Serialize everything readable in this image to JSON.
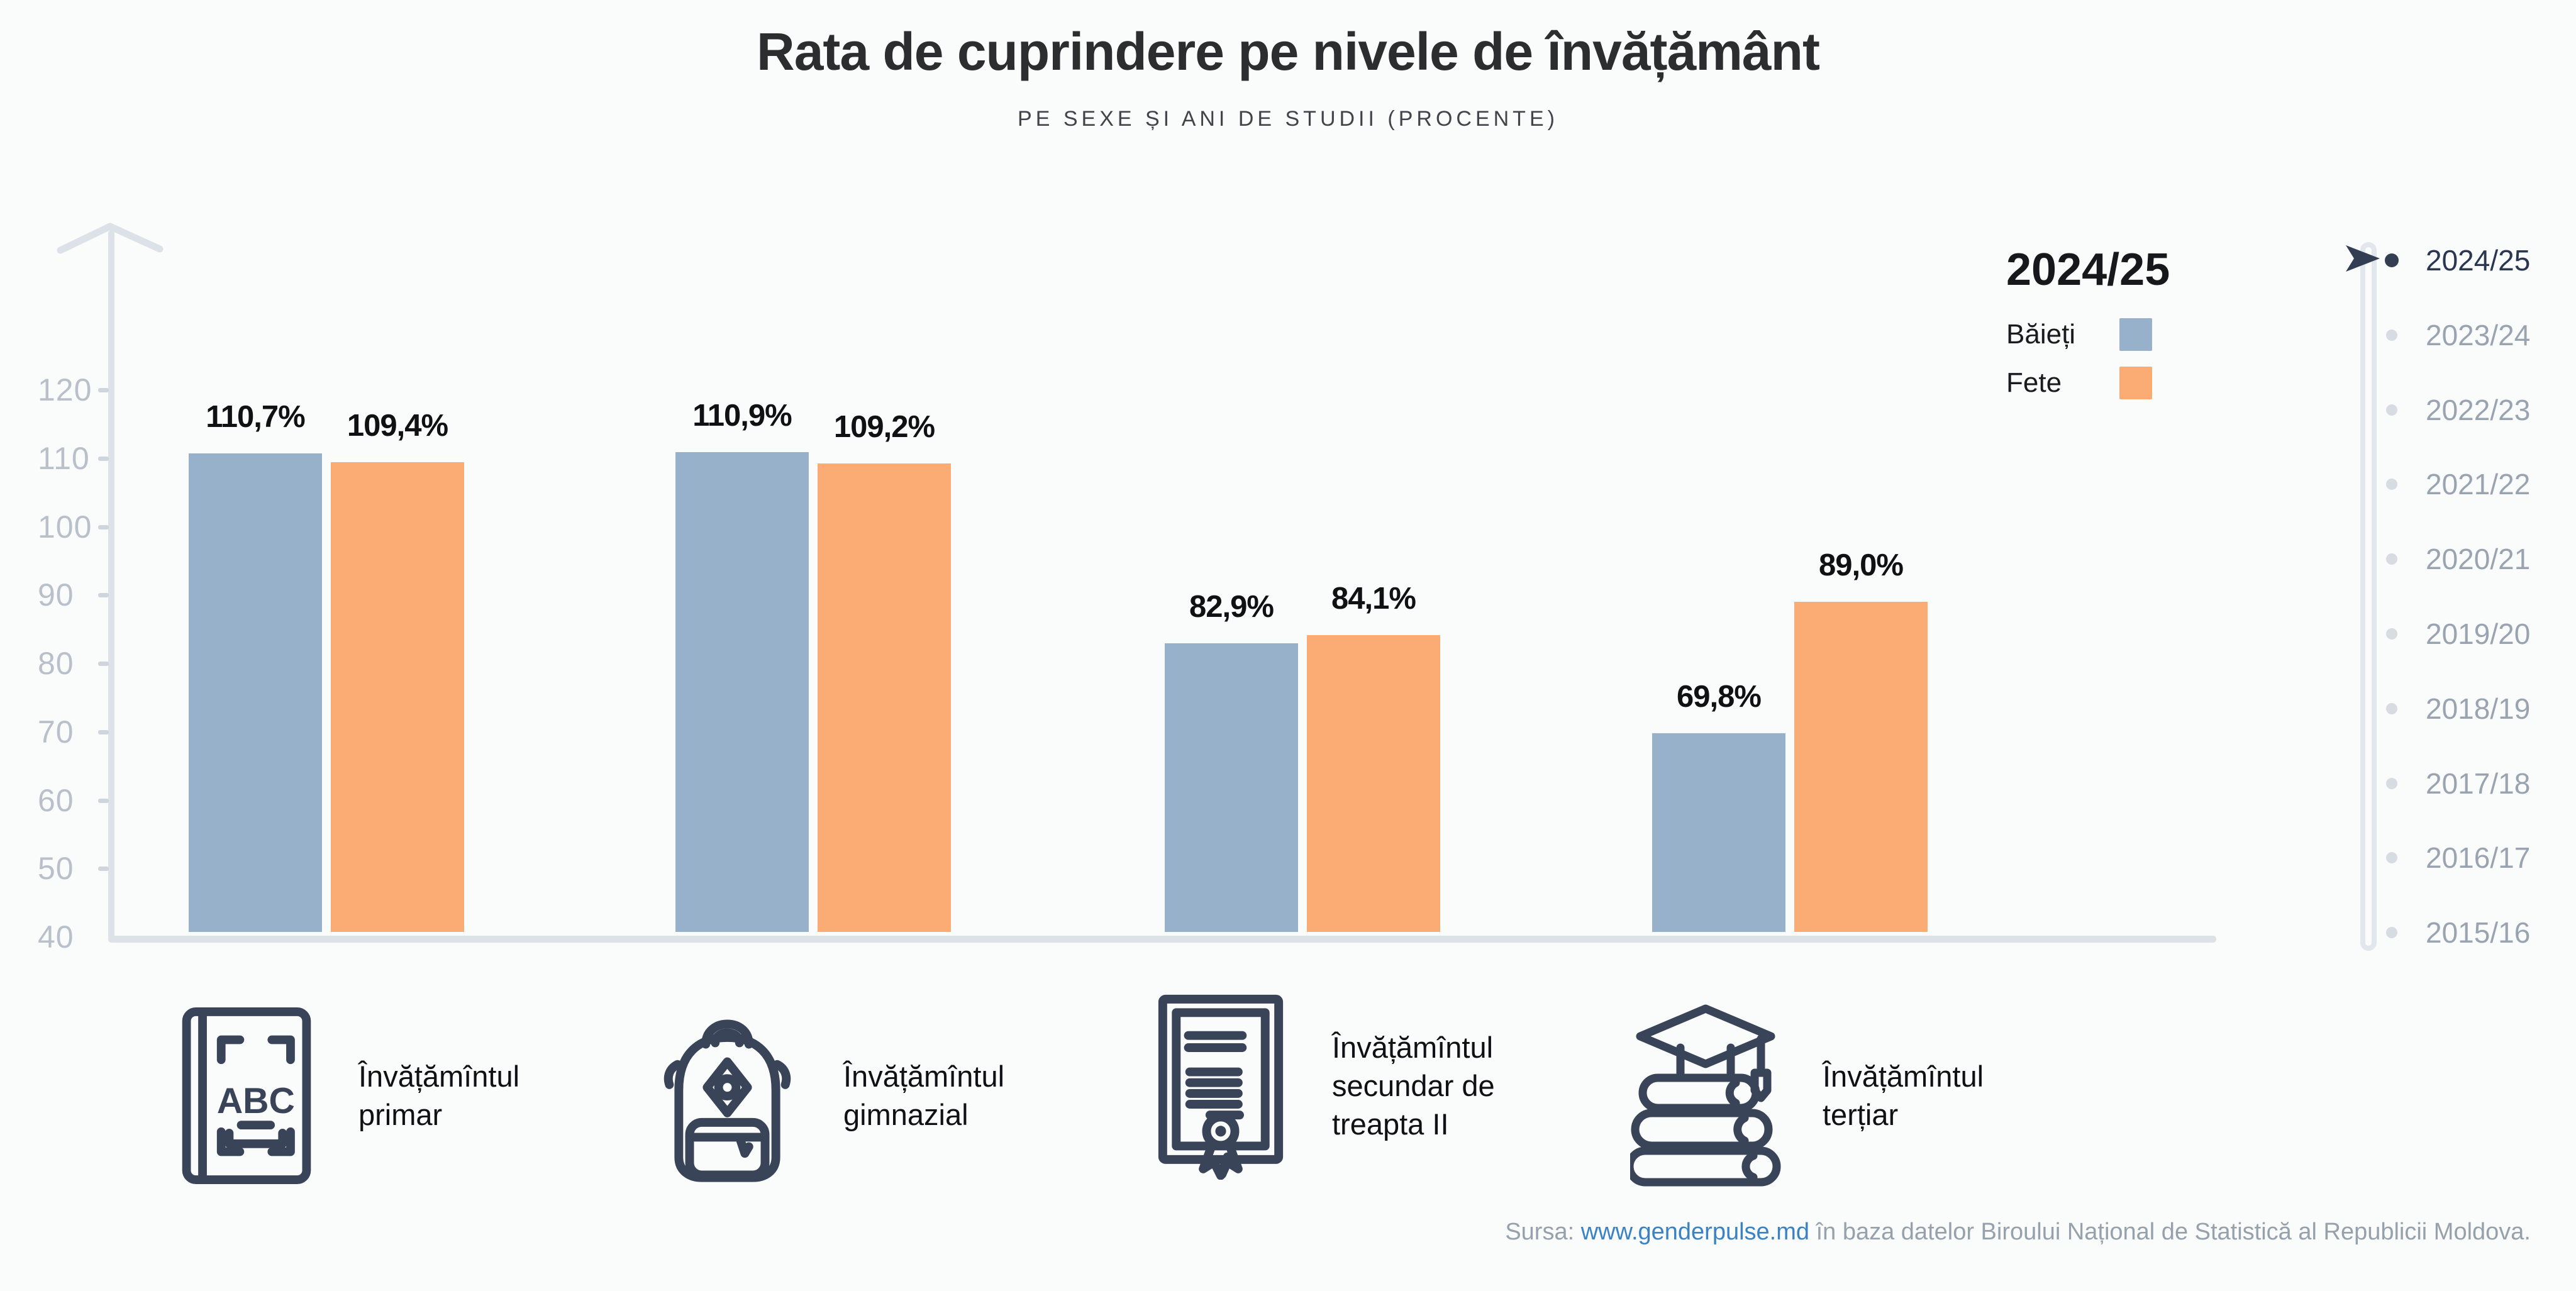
{
  "header": {
    "title": "Rata de cuprindere pe nivele de învățământ",
    "subtitle": "PE SEXE ȘI ANI DE STUDII (PROCENTE)"
  },
  "legend": {
    "selected_year": "2024/25"
  },
  "timeline": {
    "selected": "2024/25",
    "years": [
      "2024/25",
      "2023/24",
      "2022/23",
      "2021/22",
      "2020/21",
      "2019/20",
      "2018/19",
      "2017/18",
      "2016/17",
      "2015/16"
    ]
  },
  "chart_data": {
    "type": "bar",
    "title": "Rata de cuprindere pe nivele de învățământ",
    "subtitle": "PE SEXE ȘI ANI DE STUDII (PROCENTE)",
    "unit": "%",
    "categories": [
      {
        "label": "Învățămîntul primar",
        "icon": "abc-book-icon"
      },
      {
        "label": "Învățămîntul gimnazial",
        "icon": "backpack-icon"
      },
      {
        "label": "Învățămîntul secundar de treapta II",
        "icon": "diploma-icon"
      },
      {
        "label": "Învățămîntul terțiar",
        "icon": "graduation-books-icon"
      }
    ],
    "series": [
      {
        "name": "Băieți",
        "color": "#97b1ca",
        "values": [
          110.7,
          110.9,
          82.9,
          69.8
        ],
        "display_labels": [
          "110,7%",
          "110,9%",
          "82,9%",
          "69,8%"
        ]
      },
      {
        "name": "Fete",
        "color": "#fbab74",
        "values": [
          109.4,
          109.2,
          84.1,
          89.0
        ],
        "display_labels": [
          "109,4%",
          "109,2%",
          "84,1%",
          "89,0%"
        ]
      }
    ],
    "ylim": [
      40,
      130
    ],
    "yticks": [
      120,
      110,
      100,
      90,
      80,
      70,
      60,
      50,
      40
    ],
    "grid": false,
    "legend_position": "top-right"
  },
  "footer": {
    "source_prefix": "Sursa: ",
    "source_link": "www.genderpulse.md",
    "source_suffix": " în baza datelor Biroului Național de Statistică al Republicii Moldova."
  },
  "colors": {
    "accent_dark": "#333e52",
    "axis": "#dde1e8",
    "tick_label": "#b9c0ca",
    "year_label": "#9aa4b1",
    "year_label_selected": "#2b3750",
    "link": "#3b82c4"
  }
}
